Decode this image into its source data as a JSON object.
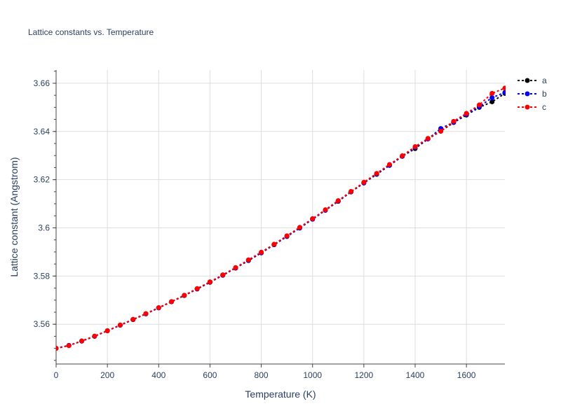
{
  "chart_data": {
    "type": "line",
    "title": "Lattice constants vs. Temperature",
    "xlabel": "Temperature (K)",
    "ylabel": "Lattice constant (Angstrom)",
    "xlim": [
      0,
      1750
    ],
    "ylim": [
      3.5435,
      3.6655
    ],
    "x_ticks": [
      0,
      200,
      400,
      600,
      800,
      1000,
      1200,
      1400,
      1600
    ],
    "x_tick_labels": [
      "0",
      "200",
      "400",
      "600",
      "800",
      "1000",
      "1200",
      "1400",
      "1600"
    ],
    "y_ticks": [
      3.56,
      3.58,
      3.6,
      3.62,
      3.64,
      3.66
    ],
    "y_tick_labels": [
      "3.56",
      "3.58",
      "3.6",
      "3.62",
      "3.64",
      "3.66"
    ],
    "grid": true,
    "legend_position": "top-right",
    "x": [
      0,
      50,
      100,
      150,
      200,
      250,
      300,
      350,
      400,
      450,
      500,
      550,
      600,
      650,
      700,
      750,
      800,
      850,
      900,
      950,
      1000,
      1050,
      1100,
      1150,
      1200,
      1250,
      1300,
      1350,
      1400,
      1450,
      1500,
      1550,
      1600,
      1650,
      1700,
      1750
    ],
    "series": [
      {
        "name": "a",
        "color": "#000000",
        "values": [
          3.55,
          3.5512,
          3.553,
          3.555,
          3.5573,
          3.5596,
          3.5619,
          3.5643,
          3.5668,
          3.5693,
          3.5719,
          3.5746,
          3.5774,
          3.5803,
          3.5833,
          3.5864,
          3.5896,
          3.593,
          3.5964,
          3.5999,
          3.6036,
          3.6073,
          3.611,
          3.6149,
          3.6186,
          3.6222,
          3.6259,
          3.6297,
          3.6329,
          3.6369,
          3.6401,
          3.6437,
          3.6468,
          3.65,
          3.6523,
          3.6558
        ]
      },
      {
        "name": "b",
        "color": "#0000ff",
        "values": [
          3.55,
          3.5512,
          3.553,
          3.555,
          3.5573,
          3.5596,
          3.562,
          3.5643,
          3.5668,
          3.5694,
          3.572,
          3.5747,
          3.5775,
          3.5804,
          3.5834,
          3.5865,
          3.5897,
          3.5931,
          3.5965,
          3.6,
          3.6036,
          3.6073,
          3.6111,
          3.615,
          3.6187,
          3.6224,
          3.626,
          3.6297,
          3.6334,
          3.6369,
          3.6412,
          3.6438,
          3.6471,
          3.6503,
          3.654,
          3.6562
        ]
      },
      {
        "name": "c",
        "color": "#ff0000",
        "values": [
          3.55,
          3.5511,
          3.5531,
          3.5551,
          3.5573,
          3.5597,
          3.562,
          3.5644,
          3.5669,
          3.5694,
          3.572,
          3.5748,
          3.5776,
          3.5805,
          3.5835,
          3.5867,
          3.5899,
          3.5932,
          3.5967,
          3.6002,
          3.6038,
          3.6075,
          3.6113,
          3.6151,
          3.6189,
          3.6226,
          3.6263,
          3.6299,
          3.6337,
          3.6371,
          3.6401,
          3.6442,
          3.6475,
          3.651,
          3.6558,
          3.658
        ]
      }
    ]
  }
}
